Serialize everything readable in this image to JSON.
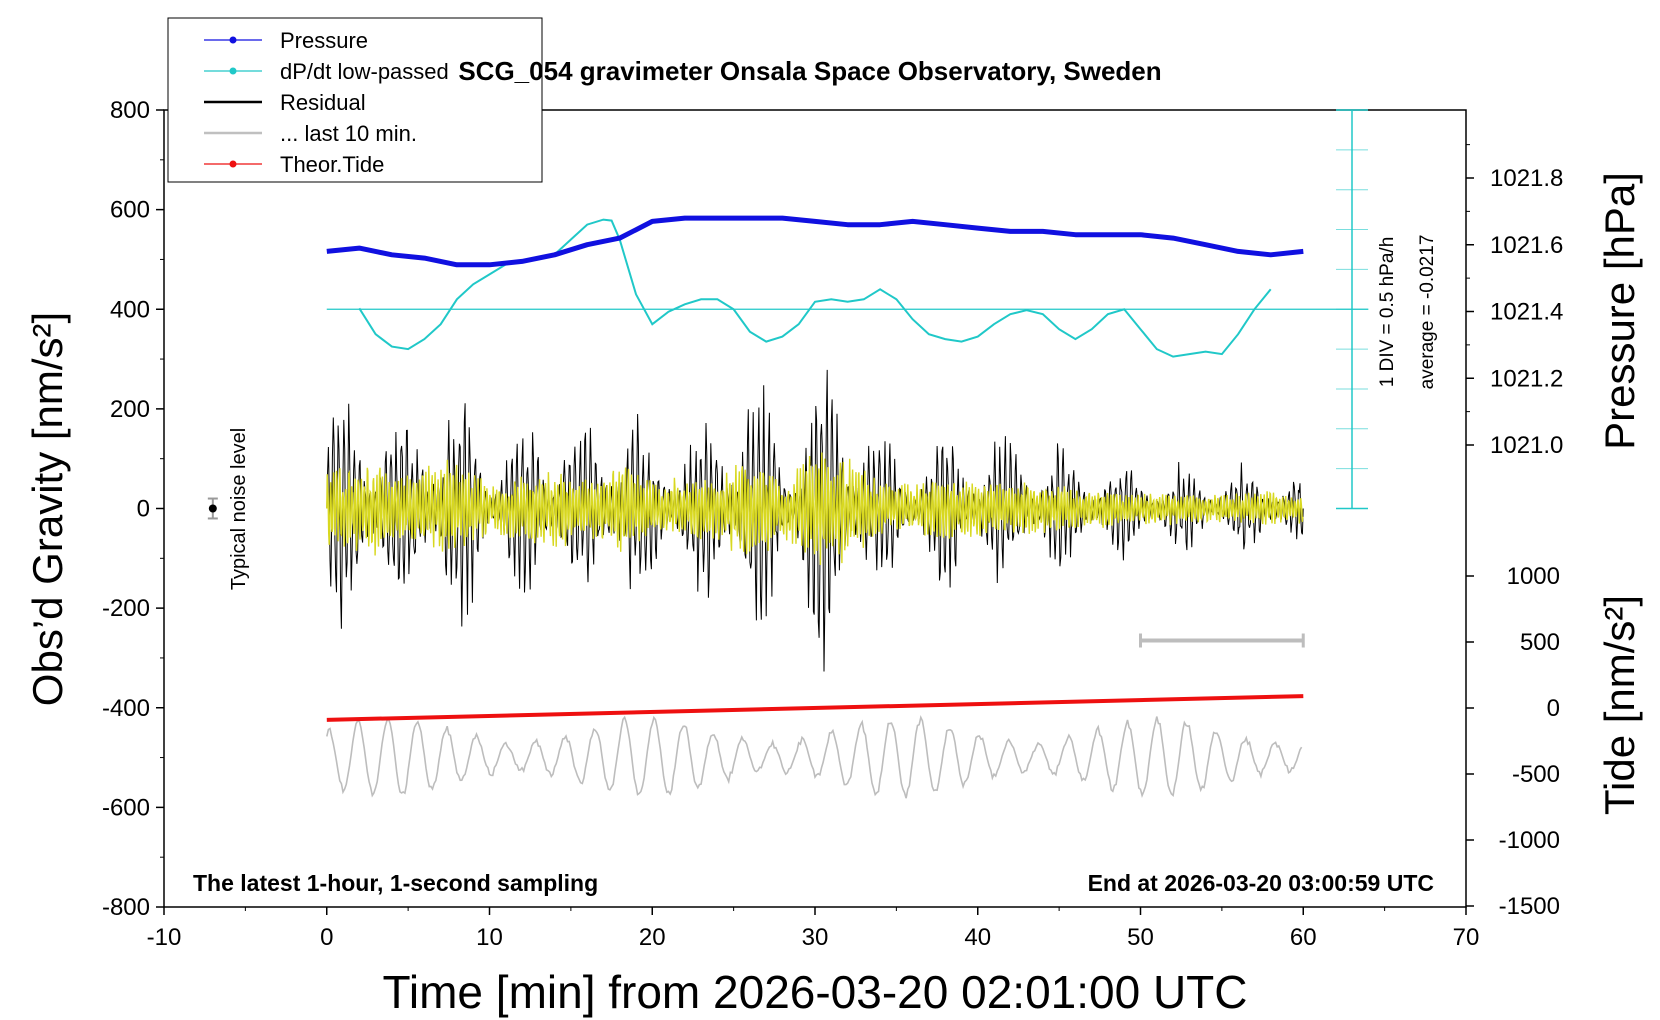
{
  "chart_data": {
    "type": "line",
    "title": "SCG_054 gravimeter Onsala Space Observatory, Sweden",
    "xlabel": "Time [min] from 2026-03-20 02:01:00 UTC",
    "ylabel_left": "Obs’d Gravity [nm/s²]",
    "ylabel_right_top": "Pressure [hPa]",
    "ylabel_right_bottom": "Tide [nm/s²]",
    "xlim": [
      -10,
      70
    ],
    "ylim": [
      -800,
      800
    ],
    "x_ticks": [
      "-10",
      "0",
      "10",
      "20",
      "30",
      "40",
      "50",
      "60",
      "70"
    ],
    "y_ticks": [
      "800",
      "600",
      "400",
      "200",
      "0",
      "-200",
      "-400",
      "-600",
      "-800"
    ],
    "pressure_ticks": [
      "1021.8",
      "1021.6",
      "1021.4",
      "1021.2",
      "1021.0"
    ],
    "pressure_tick_values": [
      1021.8,
      1021.6,
      1021.4,
      1021.2,
      1021.0
    ],
    "tide_ticks": [
      "1000",
      "500",
      "0",
      "-500",
      "-1000",
      "-1500"
    ],
    "tide_tick_values": [
      1000,
      500,
      0,
      -500,
      -1000,
      -1500
    ],
    "grid": false,
    "legend_position": "top-left, outside plot",
    "legend": [
      {
        "label": "Pressure",
        "color": "#1010e0",
        "style": "line-dot"
      },
      {
        "label": "dP/dt low-passed",
        "color": "#20c8c8",
        "style": "line-dot"
      },
      {
        "label": "Residual",
        "color": "#000000",
        "style": "line"
      },
      {
        "label": "... last 10 min.",
        "color": "#c0c0c0",
        "style": "line"
      },
      {
        "label": "Theor.Tide",
        "color": "#ee1010",
        "style": "line-dot"
      }
    ],
    "annotations": {
      "bottom_left": "The latest 1-hour, 1-second sampling",
      "bottom_right": "End at 2026-03-20 03:00:59 UTC",
      "noise": "Typical noise level",
      "dpdt_scale": "1 DIV = 0.5 hPa/h",
      "dpdt_average": "average = -0.0217"
    },
    "series": [
      {
        "name": "Pressure",
        "unit": "hPa",
        "x": [
          0,
          2,
          4,
          6,
          8,
          10,
          12,
          14,
          16,
          18,
          20,
          22,
          24,
          26,
          28,
          30,
          32,
          34,
          36,
          38,
          40,
          42,
          44,
          46,
          48,
          50,
          52,
          54,
          56,
          58,
          60
        ],
        "y": [
          1021.58,
          1021.59,
          1021.57,
          1021.56,
          1021.54,
          1021.54,
          1021.55,
          1021.57,
          1021.6,
          1021.62,
          1021.67,
          1021.68,
          1021.68,
          1021.68,
          1021.68,
          1021.67,
          1021.66,
          1021.66,
          1021.67,
          1021.66,
          1021.65,
          1021.64,
          1021.64,
          1021.63,
          1021.63,
          1021.63,
          1021.62,
          1021.6,
          1021.58,
          1021.57,
          1021.58
        ]
      },
      {
        "name": "dP/dt low-passed",
        "unit": "nm/s² (plot scale)",
        "x": [
          2,
          3,
          4,
          5,
          6,
          7,
          8,
          9,
          10,
          11,
          12,
          13,
          14,
          15,
          16,
          17,
          17.5,
          18,
          19,
          20,
          21,
          22,
          23,
          24,
          25,
          26,
          27,
          28,
          29,
          30,
          31,
          32,
          33,
          34,
          35,
          36,
          37,
          38,
          39,
          40,
          41,
          42,
          43,
          44,
          45,
          46,
          47,
          48,
          49,
          50,
          51,
          52,
          53,
          54,
          55,
          56,
          57,
          58
        ],
        "y": [
          402,
          350,
          325,
          320,
          340,
          370,
          420,
          450,
          470,
          490,
          495,
          500,
          510,
          540,
          570,
          580,
          578,
          540,
          430,
          370,
          395,
          410,
          420,
          420,
          400,
          355,
          335,
          345,
          370,
          415,
          420,
          415,
          420,
          440,
          420,
          380,
          350,
          340,
          335,
          345,
          370,
          390,
          398,
          390,
          360,
          340,
          360,
          390,
          400,
          360,
          320,
          305,
          310,
          315,
          310,
          350,
          400,
          440
        ]
      },
      {
        "name": "Theor.Tide",
        "unit": "nm/s²",
        "x": [
          0,
          60
        ],
        "y": [
          -90,
          90
        ]
      }
    ],
    "residual_envelope": {
      "note": "Residual oscillation amplitude envelope (nm/s²) over time",
      "x": [
        0,
        3,
        5,
        8,
        10,
        12,
        14,
        16,
        18,
        20,
        22,
        24,
        26,
        28,
        30,
        32,
        34,
        36,
        38,
        40,
        42,
        44,
        46,
        48,
        50,
        52,
        54,
        56,
        58,
        60
      ],
      "amplitude": [
        260,
        300,
        220,
        320,
        160,
        200,
        260,
        180,
        300,
        180,
        200,
        220,
        360,
        180,
        360,
        330,
        160,
        150,
        200,
        180,
        160,
        180,
        120,
        130,
        100,
        110,
        90,
        100,
        110,
        100
      ]
    },
    "last_10_min_bar": {
      "x_start": 50,
      "x_end": 60,
      "y": -265
    }
  }
}
